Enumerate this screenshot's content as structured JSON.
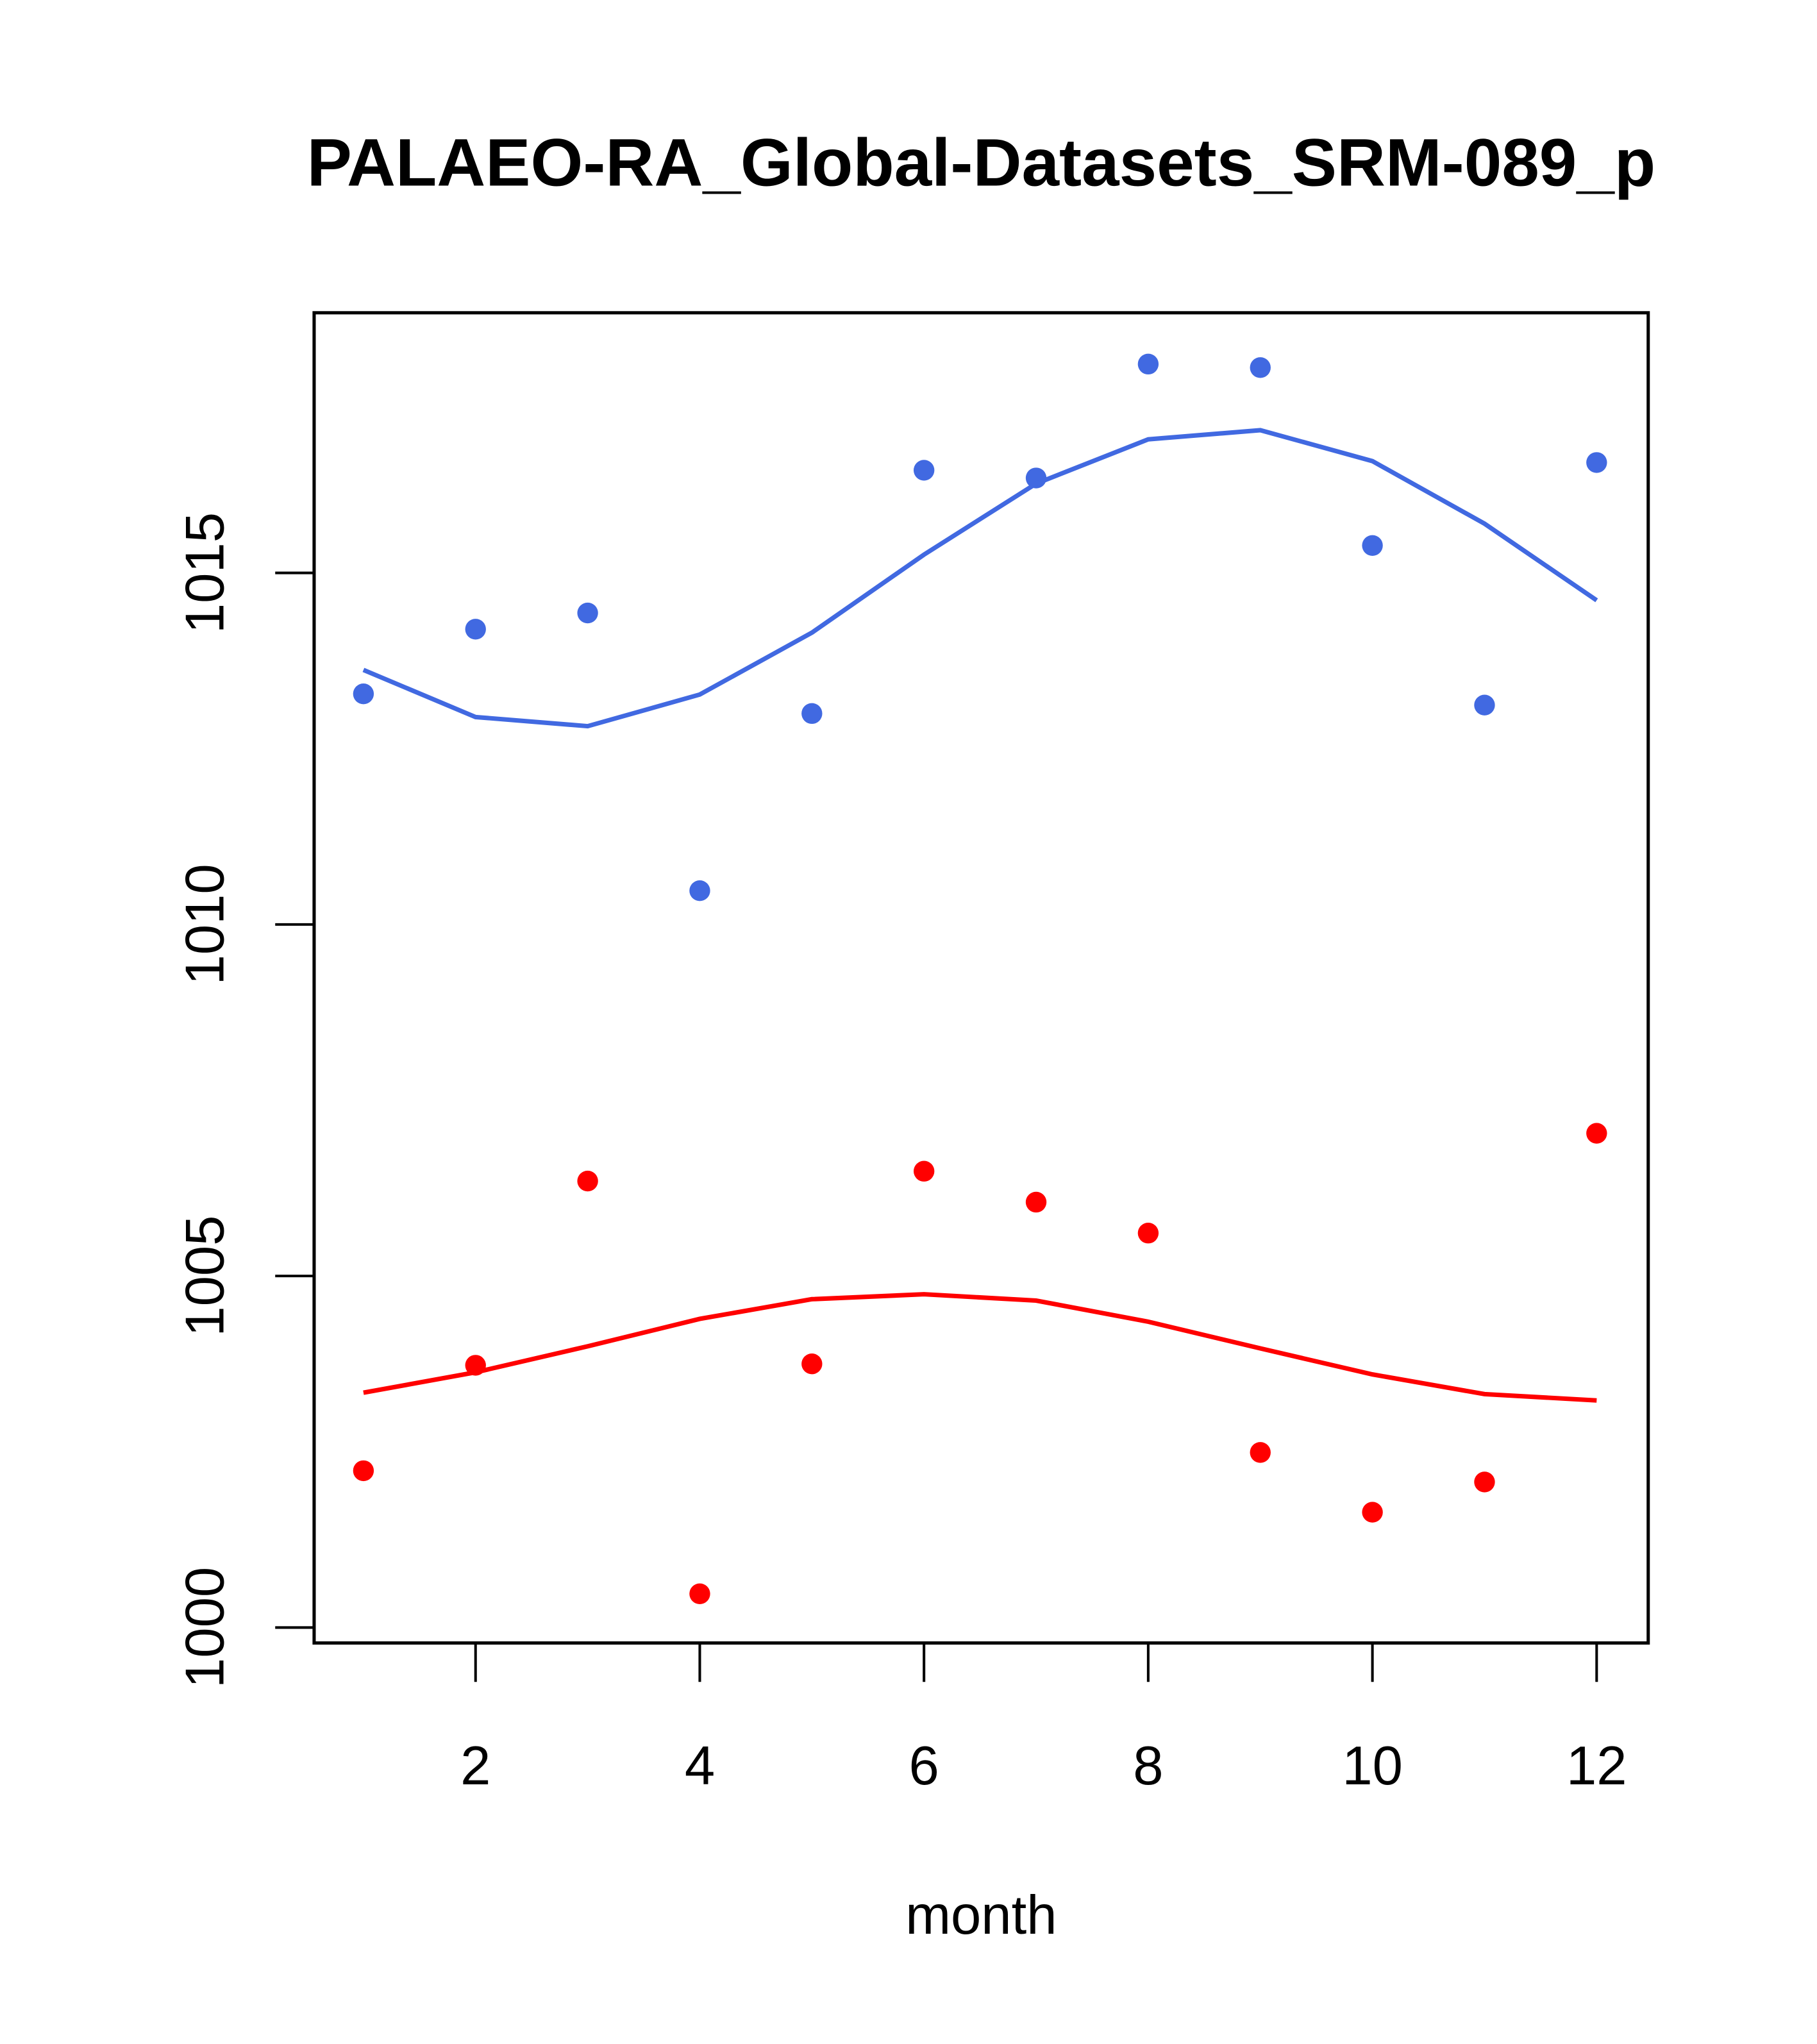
{
  "chart_data": {
    "type": "scatter",
    "title": "PALAEO-RA_Global-Datasets_SRM-089_p",
    "xlabel": "month",
    "ylabel": "",
    "xlim": [
      0.56,
      12.46
    ],
    "ylim": [
      999.78,
      1018.7
    ],
    "xticks": [
      2,
      4,
      6,
      8,
      10,
      12
    ],
    "yticks": [
      1000,
      1005,
      1010,
      1015
    ],
    "x": [
      1,
      2,
      3,
      4,
      5,
      6,
      7,
      8,
      9,
      10,
      11,
      12
    ],
    "series": [
      {
        "name": "blue points",
        "kind": "points",
        "color": "#4169E1",
        "values": [
          1013.28,
          1014.2,
          1014.43,
          1010.48,
          1013.0,
          1016.46,
          1016.35,
          1017.97,
          1017.92,
          1015.39,
          1013.12,
          1016.57
        ]
      },
      {
        "name": "blue smooth",
        "kind": "line",
        "color": "#4169E1",
        "values": [
          1013.62,
          1012.95,
          1012.82,
          1013.27,
          1014.15,
          1015.26,
          1016.27,
          1016.9,
          1017.03,
          1016.59,
          1015.7,
          1014.61
        ]
      },
      {
        "name": "red points",
        "kind": "points",
        "color": "#FF0000",
        "values": [
          1002.23,
          1003.73,
          1006.35,
          1000.48,
          1003.75,
          1006.49,
          1006.05,
          1005.61,
          1002.49,
          1001.64,
          1002.07,
          1007.03
        ]
      },
      {
        "name": "red smooth",
        "kind": "line",
        "color": "#FF0000",
        "values": [
          1003.34,
          1003.63,
          1004.0,
          1004.39,
          1004.67,
          1004.74,
          1004.65,
          1004.35,
          1003.97,
          1003.6,
          1003.32,
          1003.23
        ]
      }
    ]
  }
}
